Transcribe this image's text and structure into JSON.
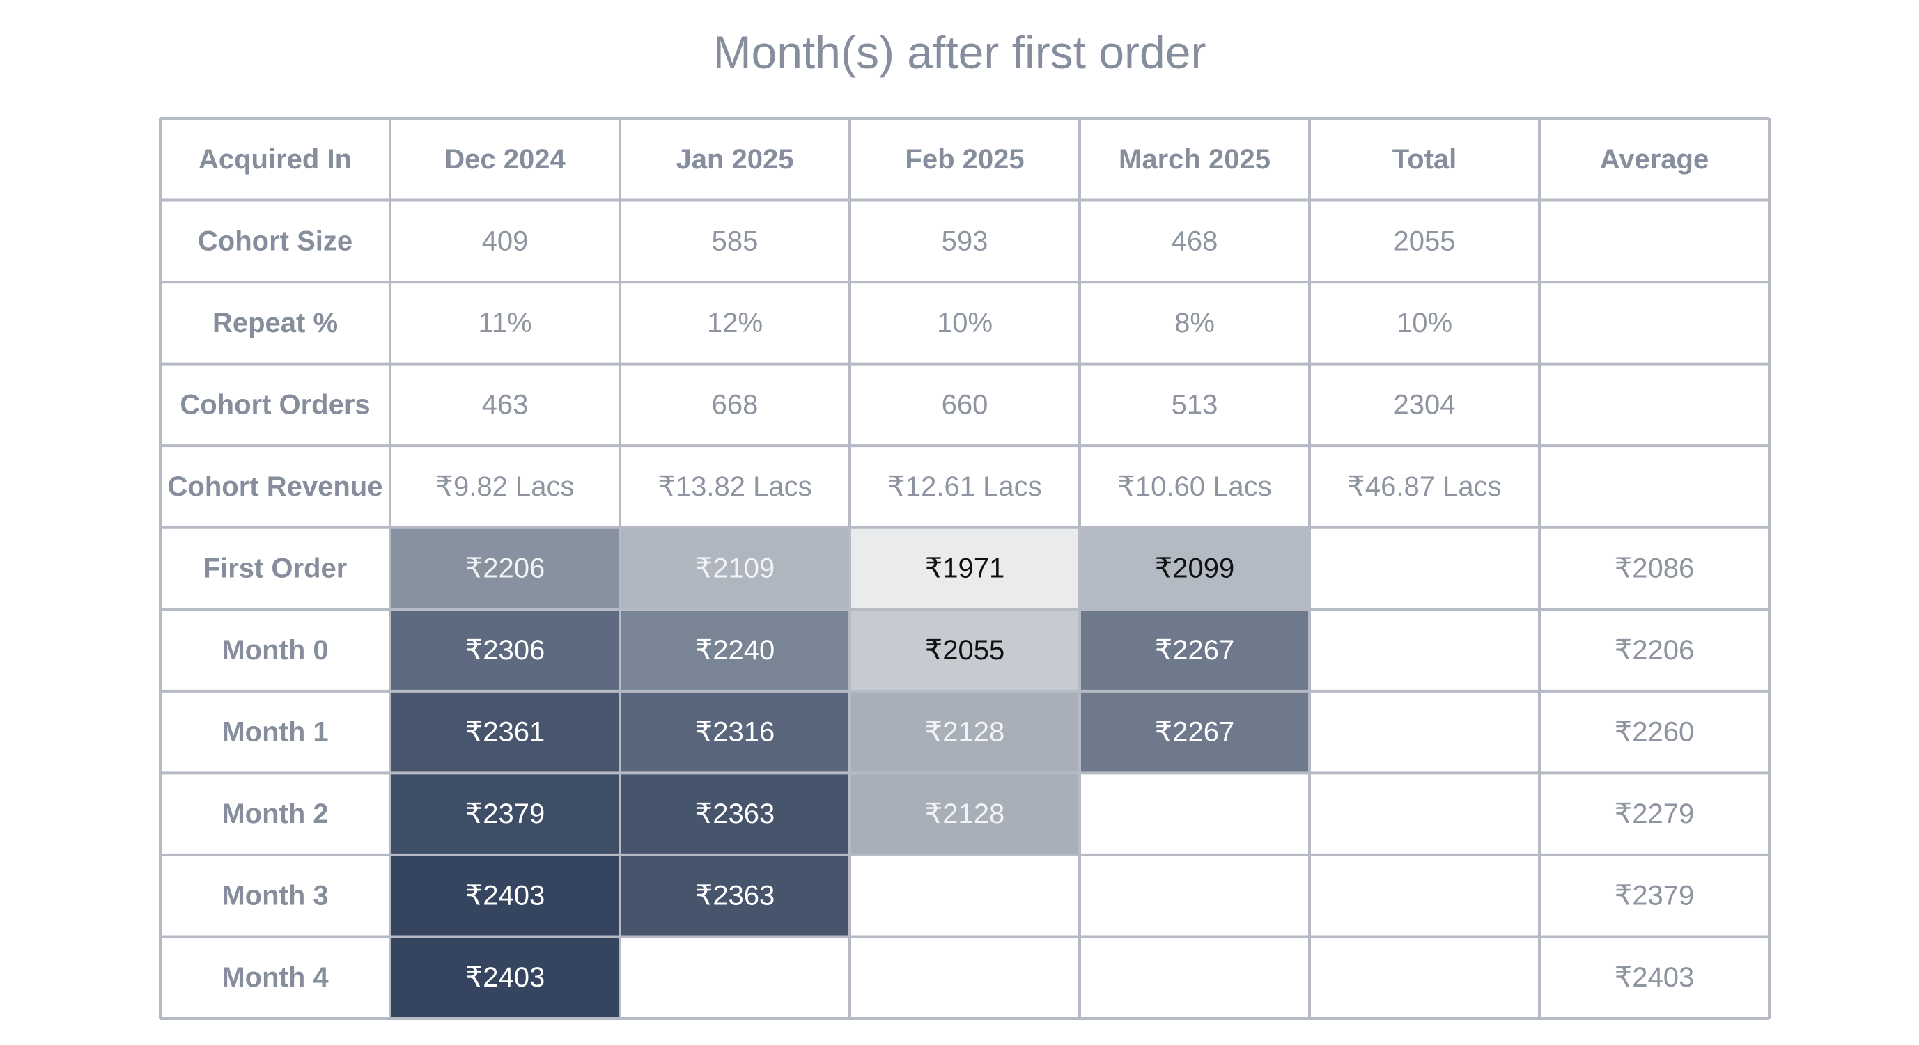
{
  "title": "Month(s) after first order",
  "colors": {
    "border": "#b6bac4",
    "header_text": "#868d9c",
    "value_text": "#8e94a0",
    "heat_dark": "#35455f",
    "heat_light": "#e9ebed",
    "text_on_dark": "#ffffff",
    "text_on_light": "#111111"
  },
  "chart_data": {
    "type": "table",
    "columns": [
      "Acquired In",
      "Dec 2024",
      "Jan 2025",
      "Feb 2025",
      "March 2025",
      "Total",
      "Average"
    ],
    "summary_rows": [
      {
        "label": "Cohort Size",
        "values": [
          "409",
          "585",
          "593",
          "468",
          "2055",
          ""
        ]
      },
      {
        "label": "Repeat %",
        "values": [
          "11%",
          "12%",
          "10%",
          "8%",
          "10%",
          ""
        ]
      },
      {
        "label": "Cohort Orders",
        "values": [
          "463",
          "668",
          "660",
          "513",
          "2304",
          ""
        ]
      },
      {
        "label": "Cohort Revenue",
        "values": [
          "₹9.82 Lacs",
          "₹13.82 Lacs",
          "₹12.61 Lacs",
          "₹10.60 Lacs",
          "₹46.87 Lacs",
          ""
        ]
      }
    ],
    "heatmap_rows": [
      {
        "label": "First Order",
        "values": [
          2206,
          2109,
          1971,
          2099
        ],
        "display": [
          "₹2206",
          "₹2109",
          "₹1971",
          "₹2099"
        ],
        "average": "₹2086"
      },
      {
        "label": "Month 0",
        "values": [
          2306,
          2240,
          2055,
          2267
        ],
        "display": [
          "₹2306",
          "₹2240",
          "₹2055",
          "₹2267"
        ],
        "average": "₹2206"
      },
      {
        "label": "Month 1",
        "values": [
          2361,
          2316,
          2128,
          2267
        ],
        "display": [
          "₹2361",
          "₹2316",
          "₹2128",
          "₹2267"
        ],
        "average": "₹2260"
      },
      {
        "label": "Month 2",
        "values": [
          2379,
          2363,
          2128,
          null
        ],
        "display": [
          "₹2379",
          "₹2363",
          "₹2128",
          ""
        ],
        "average": "₹2279"
      },
      {
        "label": "Month 3",
        "values": [
          2403,
          2363,
          null,
          null
        ],
        "display": [
          "₹2403",
          "₹2363",
          "",
          ""
        ],
        "average": "₹2379"
      },
      {
        "label": "Month 4",
        "values": [
          2403,
          null,
          null,
          null
        ],
        "display": [
          "₹2403",
          "",
          "",
          ""
        ],
        "average": "₹2403"
      }
    ],
    "color_scale": {
      "min": 1971,
      "max": 2403
    }
  }
}
